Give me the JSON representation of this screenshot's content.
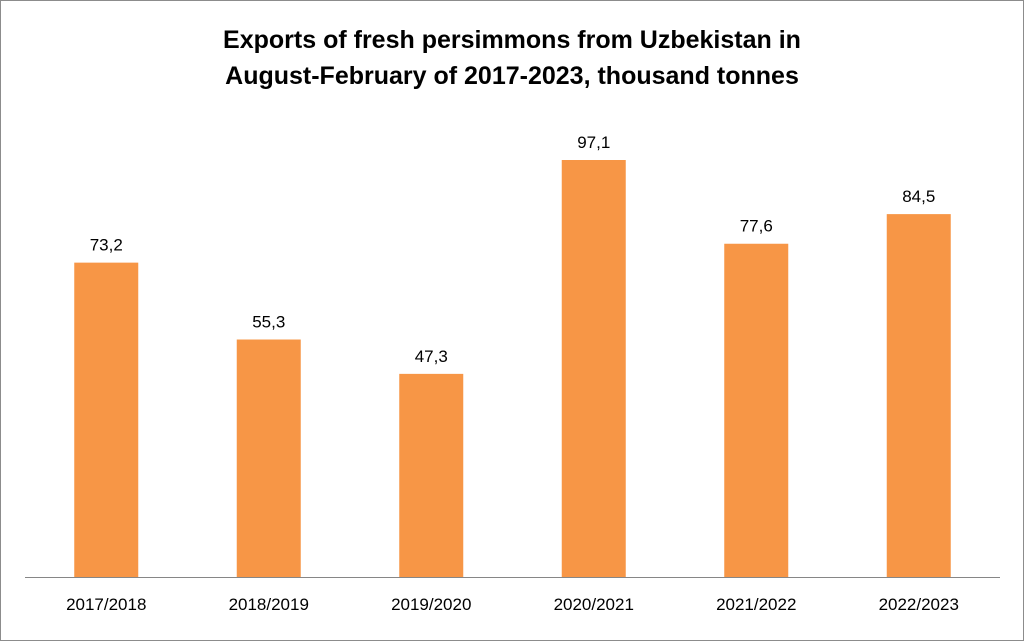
{
  "chart_data": {
    "type": "bar",
    "title": "Exports of fresh persimmons from Uzbekistan in August-February of 2017-2023, thousand tonnes",
    "title_lines": [
      "Exports of fresh persimmons from Uzbekistan in",
      "August-February of 2017-2023, thousand tonnes"
    ],
    "categories": [
      "2017/2018",
      "2018/2019",
      "2019/2020",
      "2020/2021",
      "2021/2022",
      "2022/2023"
    ],
    "values": [
      73.2,
      55.3,
      47.3,
      97.1,
      77.6,
      84.5
    ],
    "value_labels": [
      "73,2",
      "55,3",
      "47,3",
      "97,1",
      "77,6",
      "84,5"
    ],
    "xlabel": "",
    "ylabel": "",
    "ylim": [
      0,
      97.1
    ],
    "grid": false,
    "legend": "none",
    "bar_color": "#F79646",
    "axis_color": "#868686"
  }
}
